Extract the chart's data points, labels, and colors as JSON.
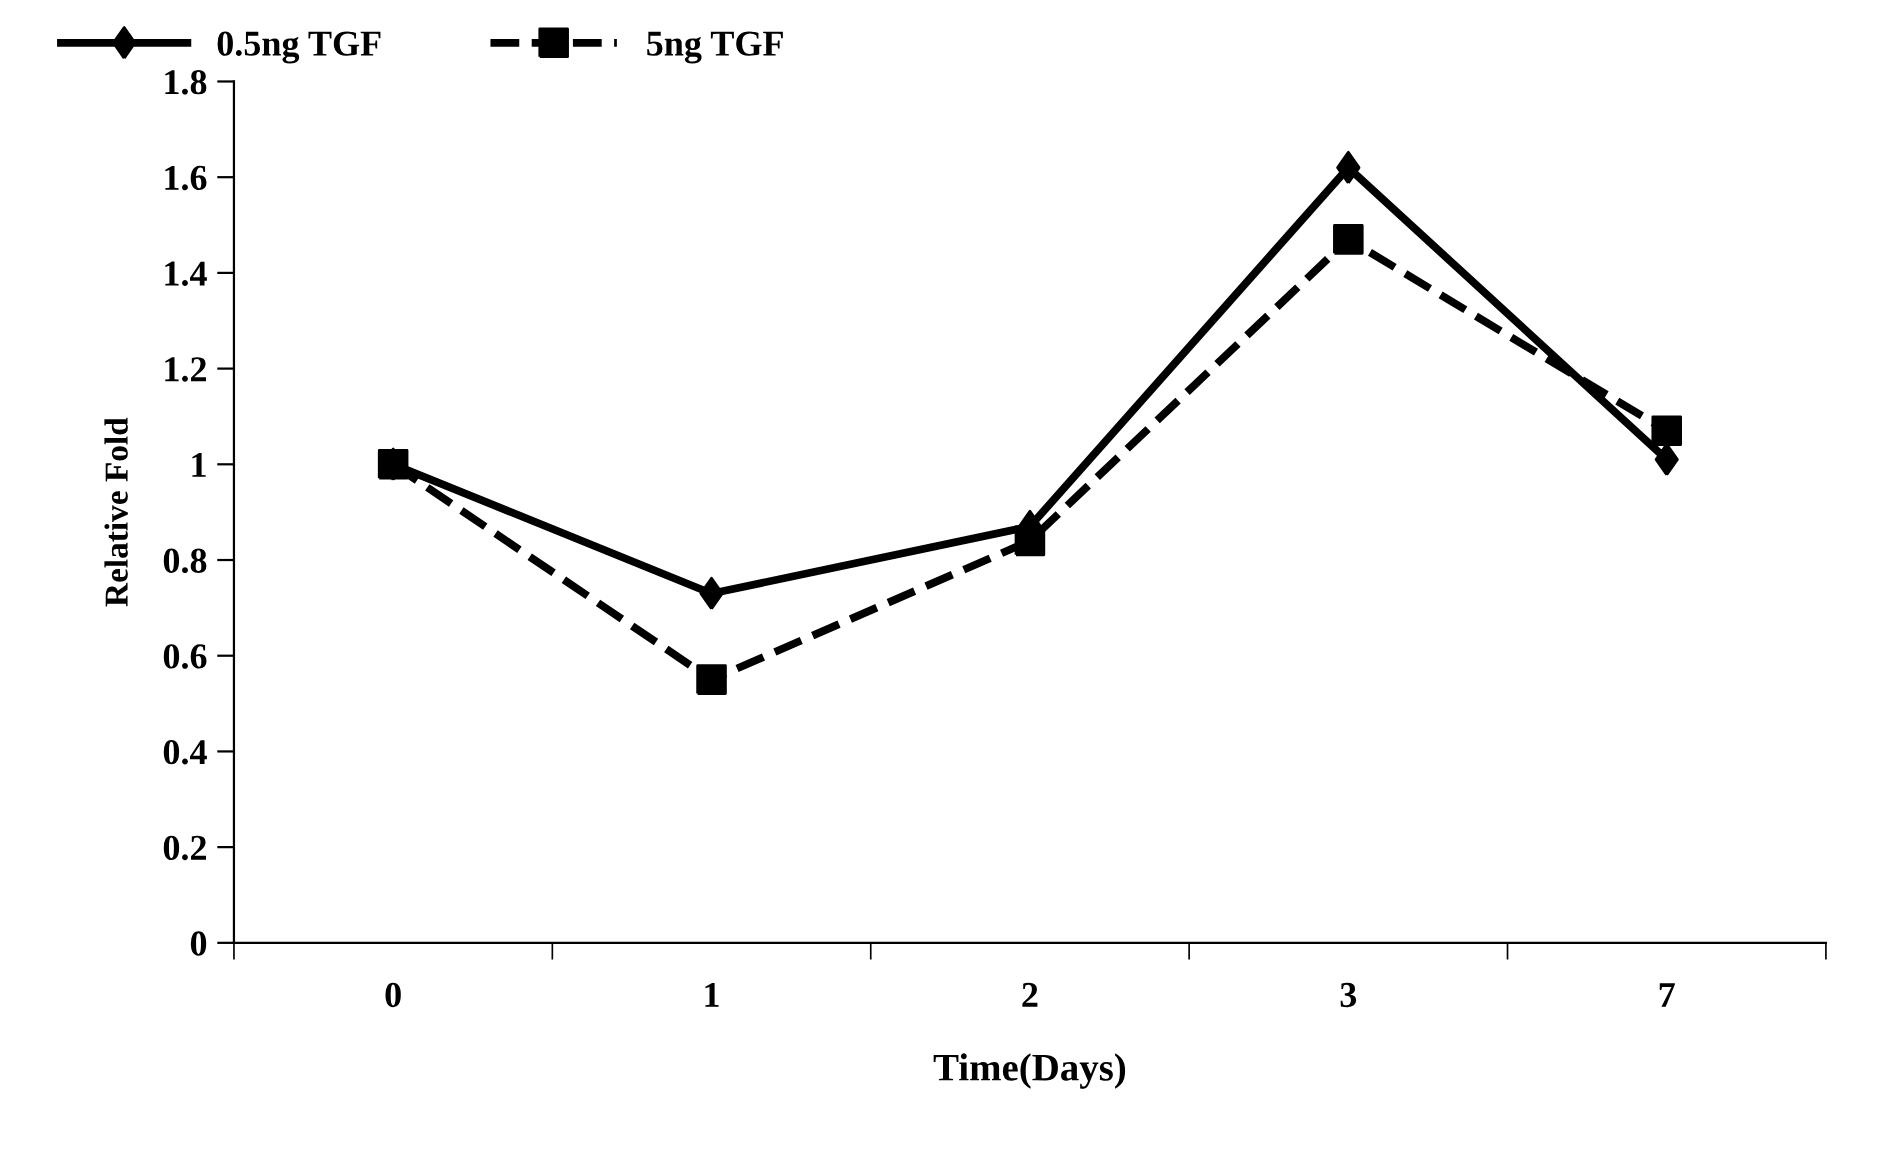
{
  "chart_data": {
    "type": "line",
    "xlabel": "Time(Days)",
    "ylabel": "Relative Fold",
    "categories": [
      "0",
      "1",
      "2",
      "3",
      "7"
    ],
    "series": [
      {
        "name": "0.5ng TGF",
        "color": "#000000",
        "marker": "diamond",
        "line_style": "solid",
        "values": [
          1,
          0.73,
          0.87,
          1.62,
          1.01
        ]
      },
      {
        "name": "5ng TGF",
        "color": "#000000",
        "marker": "square",
        "line_style": "dashed",
        "values": [
          1,
          0.55,
          0.84,
          1.47,
          1.07
        ]
      }
    ],
    "ylim": [
      0,
      1.8
    ],
    "yticks": [
      0,
      0.2,
      0.4,
      0.6,
      0.8,
      1,
      1.2,
      1.4,
      1.6,
      1.8
    ],
    "grid": false,
    "legend": "top left"
  }
}
